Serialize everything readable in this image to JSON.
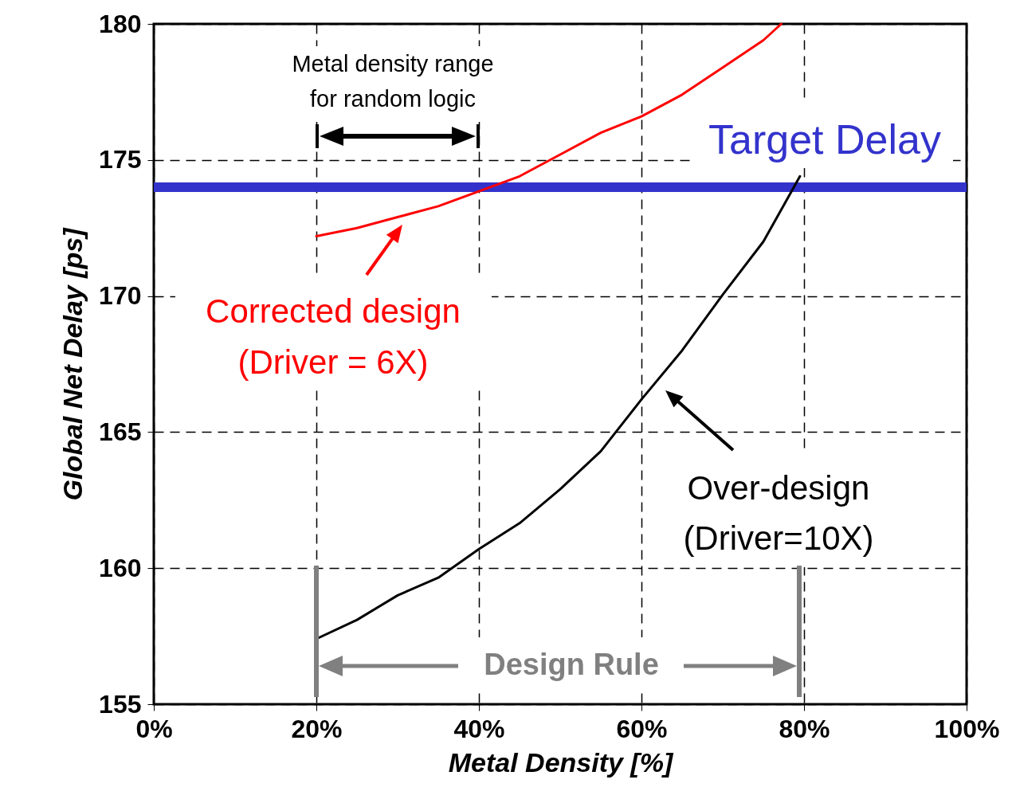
{
  "chart_data": {
    "type": "line",
    "xlabel": "Metal Density [%]",
    "ylabel": "Global Net Delay [ps]",
    "xlim": [
      0,
      100
    ],
    "ylim": [
      155,
      180
    ],
    "xticks": [
      {
        "value": 0,
        "label": "0%"
      },
      {
        "value": 20,
        "label": "20%"
      },
      {
        "value": 40,
        "label": "40%"
      },
      {
        "value": 60,
        "label": "60%"
      },
      {
        "value": 80,
        "label": "80%"
      },
      {
        "value": 100,
        "label": "100%"
      }
    ],
    "yticks": [
      155,
      160,
      165,
      170,
      175,
      180
    ],
    "grid": true,
    "line_style": "solid",
    "marker": "none",
    "series": [
      {
        "color": "#ff0000",
        "x": [
          20,
          25,
          30,
          35,
          40,
          45,
          50,
          55,
          60,
          65,
          70,
          75,
          77.2
        ],
        "values": [
          172.2,
          172.5,
          172.9,
          173.3,
          173.85,
          174.4,
          175.2,
          176.0,
          176.6,
          177.4,
          178.4,
          179.4,
          180
        ]
      },
      {
        "color": "#000000",
        "x": [
          20,
          25,
          30,
          35,
          40,
          45,
          50,
          55,
          60,
          65,
          70,
          75,
          79.5
        ],
        "values": [
          157.4,
          158.1,
          159.0,
          159.65,
          160.7,
          161.65,
          162.9,
          164.3,
          166.2,
          168.0,
          170.05,
          172.0,
          174.4
        ]
      }
    ],
    "ref_lines": [
      {
        "axis": "y",
        "value": 174,
        "label": "Target Delay",
        "color": "#3333cc"
      }
    ],
    "annotations": [
      "Metal density range\nfor random logic",
      "Corrected design\n(Driver = 6X)",
      "Over-design\n(Driver=10X)",
      "Design Rule"
    ]
  }
}
